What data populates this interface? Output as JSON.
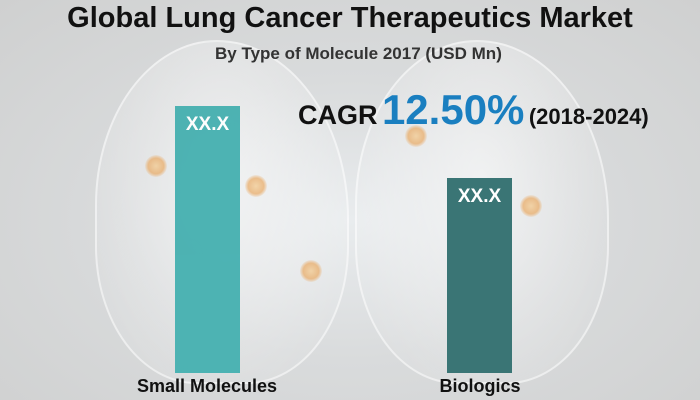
{
  "chart_data": {
    "type": "bar",
    "title": "Global Lung Cancer Therapeutics Market",
    "subtitle": "By Type of Molecule 2017 (USD Mn)",
    "categories": [
      "Small Molecules",
      "Biologics"
    ],
    "data_labels": [
      "XX.X",
      "XX.X"
    ],
    "relative_values": [
      1.0,
      0.73
    ],
    "colors": [
      "#45b0b0",
      "#3a7575"
    ],
    "axes_visible": false,
    "grid": false,
    "annotation": {
      "label": "CAGR",
      "value": "12.50%",
      "period": "(2018-2024)",
      "value_color": "#1a7fc0"
    }
  }
}
